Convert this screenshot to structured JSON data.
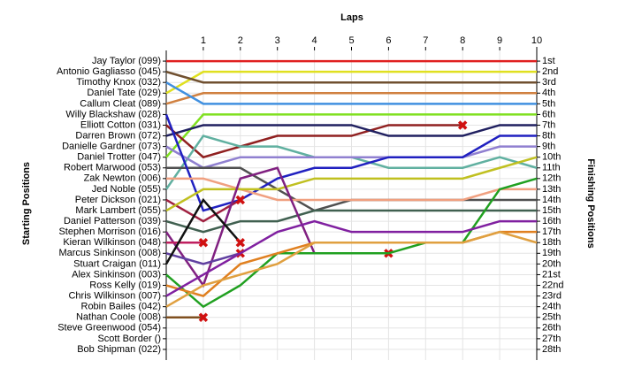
{
  "chart_data": {
    "type": "line",
    "title": "Laps",
    "ylabel": "Starting Positions",
    "y2label": "Finishing Positions",
    "x": [
      0,
      1,
      2,
      3,
      4,
      5,
      6,
      7,
      8,
      9,
      10
    ],
    "xlim": [
      0,
      10
    ],
    "xticks": [
      1,
      2,
      3,
      4,
      5,
      6,
      7,
      8,
      9,
      10
    ],
    "ylim": [
      0,
      29
    ],
    "y2lim": [
      0,
      29
    ],
    "inverted": true,
    "grid": true,
    "yticks": [
      {
        "value": 1,
        "label": "Jay Taylor (099)"
      },
      {
        "value": 2,
        "label": "Antonio Gagliasso (045)"
      },
      {
        "value": 3,
        "label": "Timothy Knox (032)"
      },
      {
        "value": 4,
        "label": "Daniel Tate (029)"
      },
      {
        "value": 5,
        "label": "Callum Cleat (089)"
      },
      {
        "value": 6,
        "label": "Willy Blackshaw (028)"
      },
      {
        "value": 7,
        "label": "Elliott Cotton (031)"
      },
      {
        "value": 8,
        "label": "Darren Brown (072)"
      },
      {
        "value": 9,
        "label": "Danielle Gardner (073)"
      },
      {
        "value": 10,
        "label": "Daniel Trotter (047)"
      },
      {
        "value": 11,
        "label": "Robert Marwood (053)"
      },
      {
        "value": 12,
        "label": "Zak Newton (006)"
      },
      {
        "value": 13,
        "label": "Jed Noble (055)"
      },
      {
        "value": 14,
        "label": "Peter Dickson (021)"
      },
      {
        "value": 15,
        "label": "Mark Lambert (055)"
      },
      {
        "value": 16,
        "label": "Daniel Patterson (039)"
      },
      {
        "value": 17,
        "label": "Stephen Morrison (016)"
      },
      {
        "value": 18,
        "label": "Kieran Wilkinson (048)"
      },
      {
        "value": 19,
        "label": "Marcus Sinkinson (008)"
      },
      {
        "value": 20,
        "label": "Stuart Craigan (011)"
      },
      {
        "value": 21,
        "label": "Alex Sinkinson (003)"
      },
      {
        "value": 22,
        "label": "Ross Kelly (019)"
      },
      {
        "value": 23,
        "label": "Chris Wilkinson (007)"
      },
      {
        "value": 24,
        "label": "Robin Bailes (042)"
      },
      {
        "value": 25,
        "label": "Nathan Coole (008)"
      },
      {
        "value": 26,
        "label": "Steve Greenwood (054)"
      },
      {
        "value": 27,
        "label": "Scott Border ()"
      },
      {
        "value": 28,
        "label": "Bob Shipman (022)"
      }
    ],
    "y2ticks": [
      {
        "value": 1,
        "label": "1st"
      },
      {
        "value": 2,
        "label": "2nd"
      },
      {
        "value": 3,
        "label": "3rd"
      },
      {
        "value": 4,
        "label": "4th"
      },
      {
        "value": 5,
        "label": "5th"
      },
      {
        "value": 6,
        "label": "6th"
      },
      {
        "value": 7,
        "label": "7th"
      },
      {
        "value": 8,
        "label": "8th"
      },
      {
        "value": 9,
        "label": "9th"
      },
      {
        "value": 10,
        "label": "10th"
      },
      {
        "value": 11,
        "label": "11th"
      },
      {
        "value": 12,
        "label": "12th"
      },
      {
        "value": 13,
        "label": "13th"
      },
      {
        "value": 14,
        "label": "14th"
      },
      {
        "value": 15,
        "label": "15th"
      },
      {
        "value": 16,
        "label": "16th"
      },
      {
        "value": 17,
        "label": "17th"
      },
      {
        "value": 18,
        "label": "18th"
      },
      {
        "value": 19,
        "label": "19th"
      },
      {
        "value": 20,
        "label": "20th"
      },
      {
        "value": 21,
        "label": "21st"
      },
      {
        "value": 22,
        "label": "22nd"
      },
      {
        "value": 23,
        "label": "23rd"
      },
      {
        "value": 24,
        "label": "24th"
      },
      {
        "value": 25,
        "label": "25th"
      },
      {
        "value": 26,
        "label": "26th"
      },
      {
        "value": 27,
        "label": "27th"
      },
      {
        "value": 28,
        "label": "28th"
      }
    ],
    "series": [
      {
        "color": "#e02020",
        "values": [
          1,
          1,
          1,
          1,
          1,
          1,
          1,
          1,
          1,
          1,
          1
        ]
      },
      {
        "color": "#e0e020",
        "values": [
          4,
          2,
          2,
          2,
          2,
          2,
          2,
          2,
          2,
          2,
          2
        ]
      },
      {
        "color": "#705030",
        "values": [
          2,
          3,
          3,
          3,
          3,
          3,
          3,
          3,
          3,
          3,
          3
        ]
      },
      {
        "color": "#d08040",
        "values": [
          5,
          4,
          4,
          4,
          4,
          4,
          4,
          4,
          4,
          4,
          4
        ]
      },
      {
        "color": "#4090e0",
        "values": [
          3,
          5,
          5,
          5,
          5,
          5,
          5,
          5,
          5,
          5,
          5
        ]
      },
      {
        "color": "#80e020",
        "values": [
          10,
          6,
          6,
          6,
          6,
          6,
          6,
          6,
          6,
          6,
          6
        ]
      },
      {
        "color": "#902020",
        "retired": true,
        "values": [
          7,
          10,
          9,
          8,
          8,
          8,
          7,
          7,
          7,
          null,
          null
        ]
      },
      {
        "color": "#202060",
        "values": [
          8,
          7,
          7,
          7,
          7,
          7,
          8,
          8,
          8,
          7,
          7
        ]
      },
      {
        "color": "#60b0a0",
        "values": [
          13,
          8,
          9,
          9,
          10,
          10,
          11,
          11,
          11,
          10,
          11
        ]
      },
      {
        "color": "#9080d0",
        "values": [
          9,
          11,
          10,
          10,
          10,
          10,
          10,
          10,
          10,
          9,
          9
        ]
      },
      {
        "color": "#505050",
        "values": [
          11,
          11,
          11,
          13,
          15,
          14,
          14,
          14,
          14,
          14,
          14
        ]
      },
      {
        "color": "#2020c0",
        "values": [
          6,
          15,
          14,
          12,
          11,
          11,
          10,
          10,
          10,
          8,
          8
        ]
      },
      {
        "color": "#f0a080",
        "values": [
          12,
          12,
          13,
          14,
          14,
          14,
          14,
          14,
          14,
          13,
          13
        ]
      },
      {
        "color": "#a02040",
        "retired": true,
        "values": [
          14,
          16,
          14,
          null,
          null,
          null,
          null,
          null,
          null,
          null,
          null
        ]
      },
      {
        "color": "#c0c020",
        "values": [
          15,
          13,
          13,
          13,
          12,
          12,
          12,
          12,
          12,
          11,
          10
        ]
      },
      {
        "color": "#406050",
        "values": [
          16,
          17,
          16,
          16,
          15,
          15,
          15,
          15,
          15,
          15,
          15
        ]
      },
      {
        "color": "#802080",
        "retired": true,
        "values": [
          17,
          22,
          12,
          11,
          19,
          19,
          19,
          null,
          null,
          null,
          null
        ]
      },
      {
        "color": "#c02060",
        "retired": true,
        "values": [
          18,
          18,
          null,
          null,
          null,
          null,
          null,
          null,
          null,
          null,
          null
        ]
      },
      {
        "color": "#6040a0",
        "retired": true,
        "values": [
          19,
          20,
          19,
          null,
          null,
          null,
          null,
          null,
          null,
          null,
          null
        ]
      },
      {
        "color": "#101010",
        "retired": true,
        "values": [
          20,
          14,
          18,
          null,
          null,
          null,
          null,
          null,
          null,
          null,
          null
        ]
      },
      {
        "color": "#20a020",
        "values": [
          21,
          24,
          22,
          19,
          19,
          19,
          19,
          18,
          18,
          13,
          12
        ]
      },
      {
        "color": "#e08020",
        "values": [
          22,
          23,
          20,
          19,
          18,
          18,
          18,
          18,
          18,
          17,
          17
        ]
      },
      {
        "color": "#8020a0",
        "values": [
          23,
          21,
          19,
          17,
          16,
          17,
          17,
          17,
          17,
          16,
          16
        ]
      },
      {
        "color": "#e0a040",
        "values": [
          24,
          22,
          21,
          20,
          18,
          18,
          18,
          18,
          18,
          17,
          18
        ]
      },
      {
        "color": "#805020",
        "retired": true,
        "values": [
          25,
          25,
          null,
          null,
          null,
          null,
          null,
          null,
          null,
          null,
          null
        ]
      }
    ]
  }
}
